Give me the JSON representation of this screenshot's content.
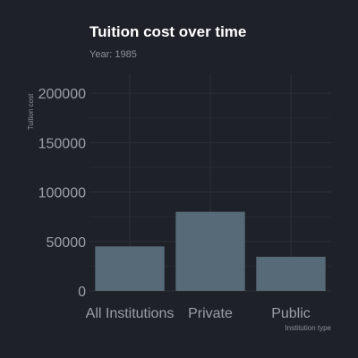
{
  "title": "Tuition cost over time",
  "subtitle": "Year: 1985",
  "colors": {
    "background": "#1f2128",
    "bar": "#566a77",
    "grid": "#2c2f37"
  },
  "chart_data": {
    "type": "bar",
    "title": "Tuition cost over time",
    "subtitle": "Year: 1985",
    "xlabel": "Institution type",
    "ylabel": "Tuition cost",
    "categories": [
      "All Institutions",
      "Private",
      "Public"
    ],
    "values": [
      45000,
      80000,
      34500
    ],
    "ylim": [
      0,
      220000
    ],
    "yticks": [
      0,
      50000,
      100000,
      150000,
      200000
    ],
    "ytick_labels": [
      "0",
      "50000",
      "100000",
      "150000",
      "200000"
    ],
    "grid": true,
    "legend": "none"
  }
}
